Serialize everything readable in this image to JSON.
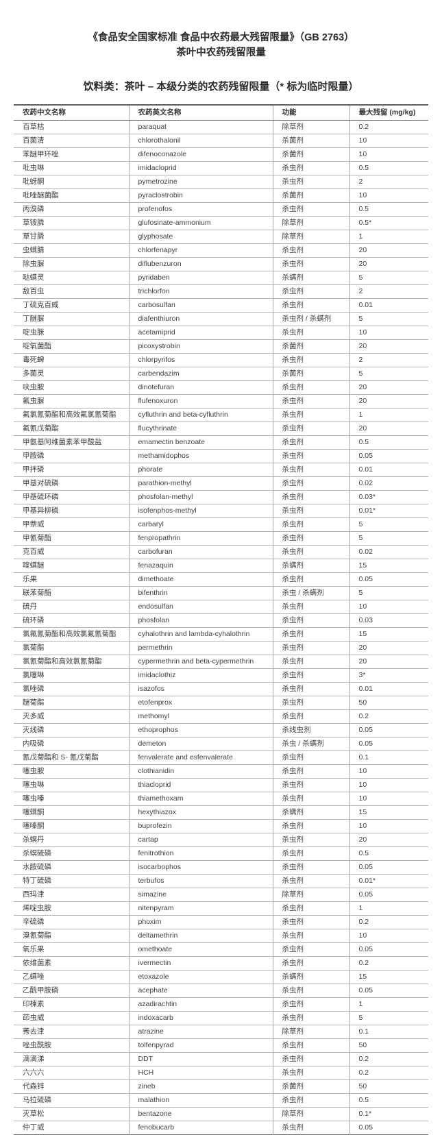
{
  "header": {
    "title_line1": "《食品安全国家标准 食品中农药最大残留限量》（GB 2763）",
    "title_line2": "茶叶中农药残留限量",
    "subtitle": "饮料类：茶叶 – 本级分类的农药残留限量（* 标为临时限量）"
  },
  "table": {
    "columns": [
      "农药中文名称",
      "农药英文名称",
      "功能",
      "最大残留 (mg/kg)"
    ],
    "rows": [
      [
        "百草枯",
        "paraquat",
        "除草剂",
        "0.2"
      ],
      [
        "百菌清",
        "chlorothalonil",
        "杀菌剂",
        "10"
      ],
      [
        "苯醚甲环唑",
        "difenoconazole",
        "杀菌剂",
        "10"
      ],
      [
        "吡虫啉",
        "imidacloprid",
        "杀虫剂",
        "0.5"
      ],
      [
        "吡蚜酮",
        "pymetrozine",
        "杀虫剂",
        "2"
      ],
      [
        "吡唑醚菌酯",
        "pyraclostrobin",
        "杀菌剂",
        "10"
      ],
      [
        "丙溴磷",
        "profenofos",
        "杀虫剂",
        "0.5"
      ],
      [
        "草铵膦",
        "glufosinate-ammonium",
        "除草剂",
        "0.5*"
      ],
      [
        "草甘膦",
        "glyphosate",
        "除草剂",
        "1"
      ],
      [
        "虫螨腈",
        "chlorfenapyr",
        "杀虫剂",
        "20"
      ],
      [
        "除虫脲",
        "diflubenzuron",
        "杀虫剂",
        "20"
      ],
      [
        "哒螨灵",
        "pyridaben",
        "杀螨剂",
        "5"
      ],
      [
        "敌百虫",
        "trichlorfon",
        "杀虫剂",
        "2"
      ],
      [
        "丁硫克百威",
        "carbosulfan",
        "杀虫剂",
        "0.01"
      ],
      [
        "丁醚脲",
        "diafenthiuron",
        "杀虫剂 / 杀螨剂",
        "5"
      ],
      [
        "啶虫脒",
        "acetamiprid",
        "杀虫剂",
        "10"
      ],
      [
        "啶氧菌酯",
        "picoxystrobin",
        "杀菌剂",
        "20"
      ],
      [
        "毒死蜱",
        "chlorpyrifos",
        "杀虫剂",
        "2"
      ],
      [
        "多菌灵",
        "carbendazim",
        "杀菌剂",
        "5"
      ],
      [
        "呋虫胺",
        "dinotefuran",
        "杀虫剂",
        "20"
      ],
      [
        "氟虫脲",
        "flufenoxuron",
        "杀虫剂",
        "20"
      ],
      [
        "氟氯氰菊酯和高效氟氯氰菊酯",
        "cyfluthrin and beta-cyfluthrin",
        "杀虫剂",
        "1"
      ],
      [
        "氟氰戊菊酯",
        "flucythrinate",
        "杀虫剂",
        "20"
      ],
      [
        "甲氨基阿维菌素苯甲酸盐",
        "emamectin benzoate",
        "杀虫剂",
        "0.5"
      ],
      [
        "甲胺磷",
        "methamidophos",
        "杀虫剂",
        "0.05"
      ],
      [
        "甲拌磷",
        "phorate",
        "杀虫剂",
        "0.01"
      ],
      [
        "甲基对硫磷",
        "parathion-methyl",
        "杀虫剂",
        "0.02"
      ],
      [
        "甲基硫环磷",
        "phosfolan-methyl",
        "杀虫剂",
        "0.03*"
      ],
      [
        "甲基异柳磷",
        "isofenphos-methyl",
        "杀虫剂",
        "0.01*"
      ],
      [
        "甲萘威",
        "carbaryl",
        "杀虫剂",
        "5"
      ],
      [
        "甲氰菊酯",
        "fenpropathrin",
        "杀虫剂",
        "5"
      ],
      [
        "克百威",
        "carbofuran",
        "杀虫剂",
        "0.02"
      ],
      [
        "喹螨醚",
        "fenazaquin",
        "杀螨剂",
        "15"
      ],
      [
        "乐果",
        "dimethoate",
        "杀虫剂",
        "0.05"
      ],
      [
        "联苯菊酯",
        "bifenthrin",
        "杀虫 / 杀螨剂",
        "5"
      ],
      [
        "硫丹",
        "endosulfan",
        "杀虫剂",
        "10"
      ],
      [
        "硫环磷",
        "phosfolan",
        "杀虫剂",
        "0.03"
      ],
      [
        "氯氟氰菊酯和高效氯氟氰菊酯",
        "cyhalothrin and lambda-cyhalothrin",
        "杀虫剂",
        "15"
      ],
      [
        "氯菊酯",
        "permethrin",
        "杀虫剂",
        "20"
      ],
      [
        "氯氰菊酯和高效氯氰菊酯",
        "cypermethrin and beta-cypermethrin",
        "杀虫剂",
        "20"
      ],
      [
        "氯噻啉",
        "imidaclothiz",
        "杀虫剂",
        "3*"
      ],
      [
        "氯唑磷",
        "isazofos",
        "杀虫剂",
        "0.01"
      ],
      [
        "醚菊酯",
        "etofenprox",
        "杀虫剂",
        "50"
      ],
      [
        "灭多威",
        "methomyl",
        "杀虫剂",
        "0.2"
      ],
      [
        "灭线磷",
        "ethoprophos",
        "杀线虫剂",
        "0.05"
      ],
      [
        "内吸磷",
        "demeton",
        "杀虫 / 杀螨剂",
        "0.05"
      ],
      [
        "氰戊菊酯和 S- 氰戊菊酯",
        "fenvalerate and esfenvalerate",
        "杀虫剂",
        "0.1"
      ],
      [
        "噻虫胺",
        "clothianidin",
        "杀虫剂",
        "10"
      ],
      [
        "噻虫啉",
        "thiacloprid",
        "杀虫剂",
        "10"
      ],
      [
        "噻虫嗪",
        "thiamethoxam",
        "杀虫剂",
        "10"
      ],
      [
        "噻螨酮",
        "hexythiazox",
        "杀螨剂",
        "15"
      ],
      [
        "噻嗪酮",
        "buprofezin",
        "杀虫剂",
        "10"
      ],
      [
        "杀螟丹",
        "cartap",
        "杀虫剂",
        "20"
      ],
      [
        "杀螟硫磷",
        "fenitrothion",
        "杀虫剂",
        "0.5"
      ],
      [
        "水胺硫磷",
        "isocarbophos",
        "杀虫剂",
        "0.05"
      ],
      [
        "特丁硫磷",
        "terbufos",
        "杀虫剂",
        "0.01*"
      ],
      [
        "西玛津",
        "simazine",
        "除草剂",
        "0.05"
      ],
      [
        "烯啶虫胺",
        "nitenpyram",
        "杀虫剂",
        "1"
      ],
      [
        "辛硫磷",
        "phoxim",
        "杀虫剂",
        "0.2"
      ],
      [
        "溴氰菊酯",
        "deltamethrin",
        "杀虫剂",
        "10"
      ],
      [
        "氧乐果",
        "omethoate",
        "杀虫剂",
        "0.05"
      ],
      [
        "依维菌素",
        "ivermectin",
        "杀虫剂",
        "0.2"
      ],
      [
        "乙螨唑",
        "etoxazole",
        "杀螨剂",
        "15"
      ],
      [
        "乙酰甲胺磷",
        "acephate",
        "杀虫剂",
        "0.05"
      ],
      [
        "印楝素",
        "azadirachtin",
        "杀虫剂",
        "1"
      ],
      [
        "茚虫威",
        "indoxacarb",
        "杀虫剂",
        "5"
      ],
      [
        "莠去津",
        "atrazine",
        "除草剂",
        "0.1"
      ],
      [
        "唑虫酰胺",
        "tolfenpyrad",
        "杀虫剂",
        "50"
      ],
      [
        "滴滴涕",
        "DDT",
        "杀虫剂",
        "0.2"
      ],
      [
        "六六六",
        "HCH",
        "杀虫剂",
        "0.2"
      ],
      [
        "代森锌",
        "zineb",
        "杀菌剂",
        "50"
      ],
      [
        "马拉硫磷",
        "malathion",
        "杀虫剂",
        "0.5"
      ],
      [
        "灭草松",
        "bentazone",
        "除草剂",
        "0.1*"
      ],
      [
        "仲丁威",
        "fenobucarb",
        "杀虫剂",
        "0.05"
      ]
    ]
  },
  "colors": {
    "background": "#ffffff",
    "body_text": "#3f3f3f",
    "heading_text": "#2b2b2b",
    "border_strong": "#5f5f5f",
    "border_light": "#b2b2b2"
  }
}
